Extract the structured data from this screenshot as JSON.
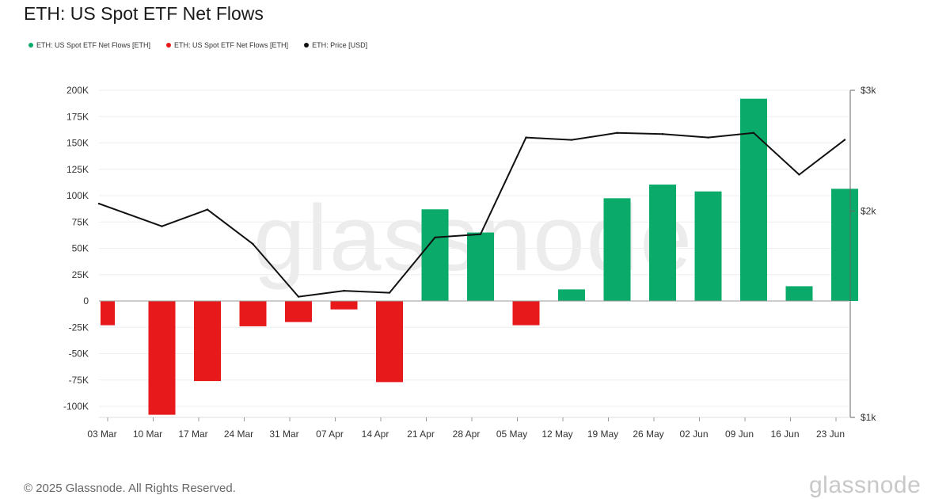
{
  "title": "ETH: US Spot ETF Net Flows",
  "legend": [
    {
      "label": "ETH: US Spot ETF Net Flows [ETH]",
      "color": "#0aab6a"
    },
    {
      "label": "ETH: US Spot ETF Net Flows [ETH]",
      "color": "#e8191a"
    },
    {
      "label": "ETH: Price [USD]",
      "color": "#111111"
    }
  ],
  "watermark": "glassnode",
  "footer": "© 2025 Glassnode. All Rights Reserved.",
  "logo": "glassnode",
  "colors": {
    "positive": "#0aab6a",
    "negative": "#e8191a",
    "price": "#111111"
  },
  "chart_data": {
    "type": "bar",
    "categories": [
      "03 Mar",
      "10 Mar",
      "17 Mar",
      "24 Mar",
      "31 Mar",
      "07 Apr",
      "14 Apr",
      "21 Apr",
      "28 Apr",
      "05 May",
      "12 May",
      "19 May",
      "26 May",
      "02 Jun",
      "09 Jun",
      "16 Jun",
      "23 Jun"
    ],
    "series": [
      {
        "name": "ETH: US Spot ETF Net Flows [ETH]",
        "type": "bar",
        "axis": "left",
        "values": [
          -23000,
          -108000,
          -76000,
          -24000,
          -20000,
          -8000,
          -77000,
          87000,
          65000,
          -23000,
          11000,
          97500,
          110500,
          104000,
          192000,
          14000,
          106500
        ]
      },
      {
        "name": "ETH: Price [USD]",
        "type": "line",
        "axis": "right",
        "values": [
          2050,
          1900,
          2010,
          1790,
          1500,
          1530,
          1520,
          1830,
          1850,
          2560,
          2540,
          2600,
          2590,
          2560,
          2600,
          2260,
          2540
        ]
      }
    ],
    "y_left": {
      "ticks": [
        200000,
        175000,
        150000,
        125000,
        100000,
        75000,
        50000,
        25000,
        0,
        -25000,
        -50000,
        -75000,
        -100000
      ],
      "tick_labels": [
        "200K",
        "175K",
        "150K",
        "125K",
        "100K",
        "75K",
        "50K",
        "25K",
        "0",
        "-25K",
        "-50K",
        "-75K",
        "-100K"
      ],
      "range": [
        -110000,
        200000
      ]
    },
    "y_right": {
      "scale": "log",
      "ticks": [
        3000,
        2000,
        1000
      ],
      "tick_labels": [
        "$3k",
        "$2k",
        "$1k"
      ],
      "range": [
        1000,
        3000
      ]
    },
    "grid": true,
    "legend_position": "top-left"
  }
}
